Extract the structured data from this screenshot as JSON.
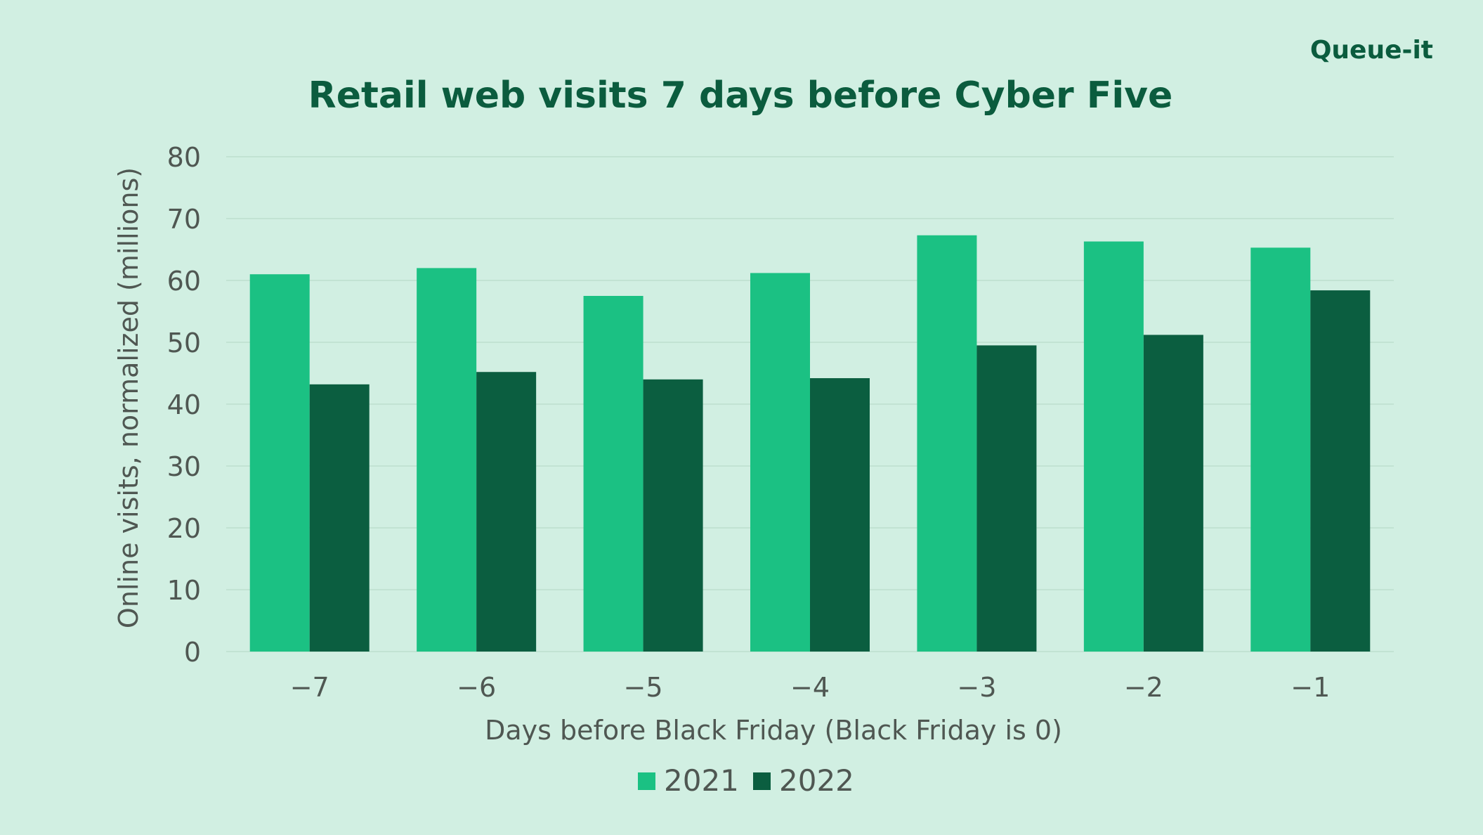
{
  "brand": {
    "logo_text": "Queue-it",
    "logo_color": "#0b5c3e"
  },
  "colors": {
    "background": "#d1efe2",
    "title": "#0b5c3e",
    "axis_text": "#4f5752",
    "gridline": "#c2e3d3",
    "series_2021": "#1bc183",
    "series_2022": "#0b5e40"
  },
  "chart_data": {
    "type": "bar",
    "title": "Retail web visits 7 days before Cyber Five",
    "xlabel": "Days before Black Friday (Black Friday is 0)",
    "ylabel": "Online visits, normalized (millions)",
    "categories": [
      "−7",
      "−6",
      "−5",
      "−4",
      "−3",
      "−2",
      "−1"
    ],
    "series": [
      {
        "name": "2021",
        "values": [
          61,
          62,
          57.5,
          61.2,
          67.3,
          66.3,
          65.3
        ]
      },
      {
        "name": "2022",
        "values": [
          43.2,
          45.2,
          44,
          44.2,
          49.5,
          51.2,
          58.4
        ]
      }
    ],
    "ylim": [
      0,
      80
    ],
    "yticks": [
      "0",
      "10",
      "20",
      "30",
      "40",
      "50",
      "60",
      "70",
      "80"
    ],
    "grid": true,
    "legend_position": "bottom-center"
  }
}
